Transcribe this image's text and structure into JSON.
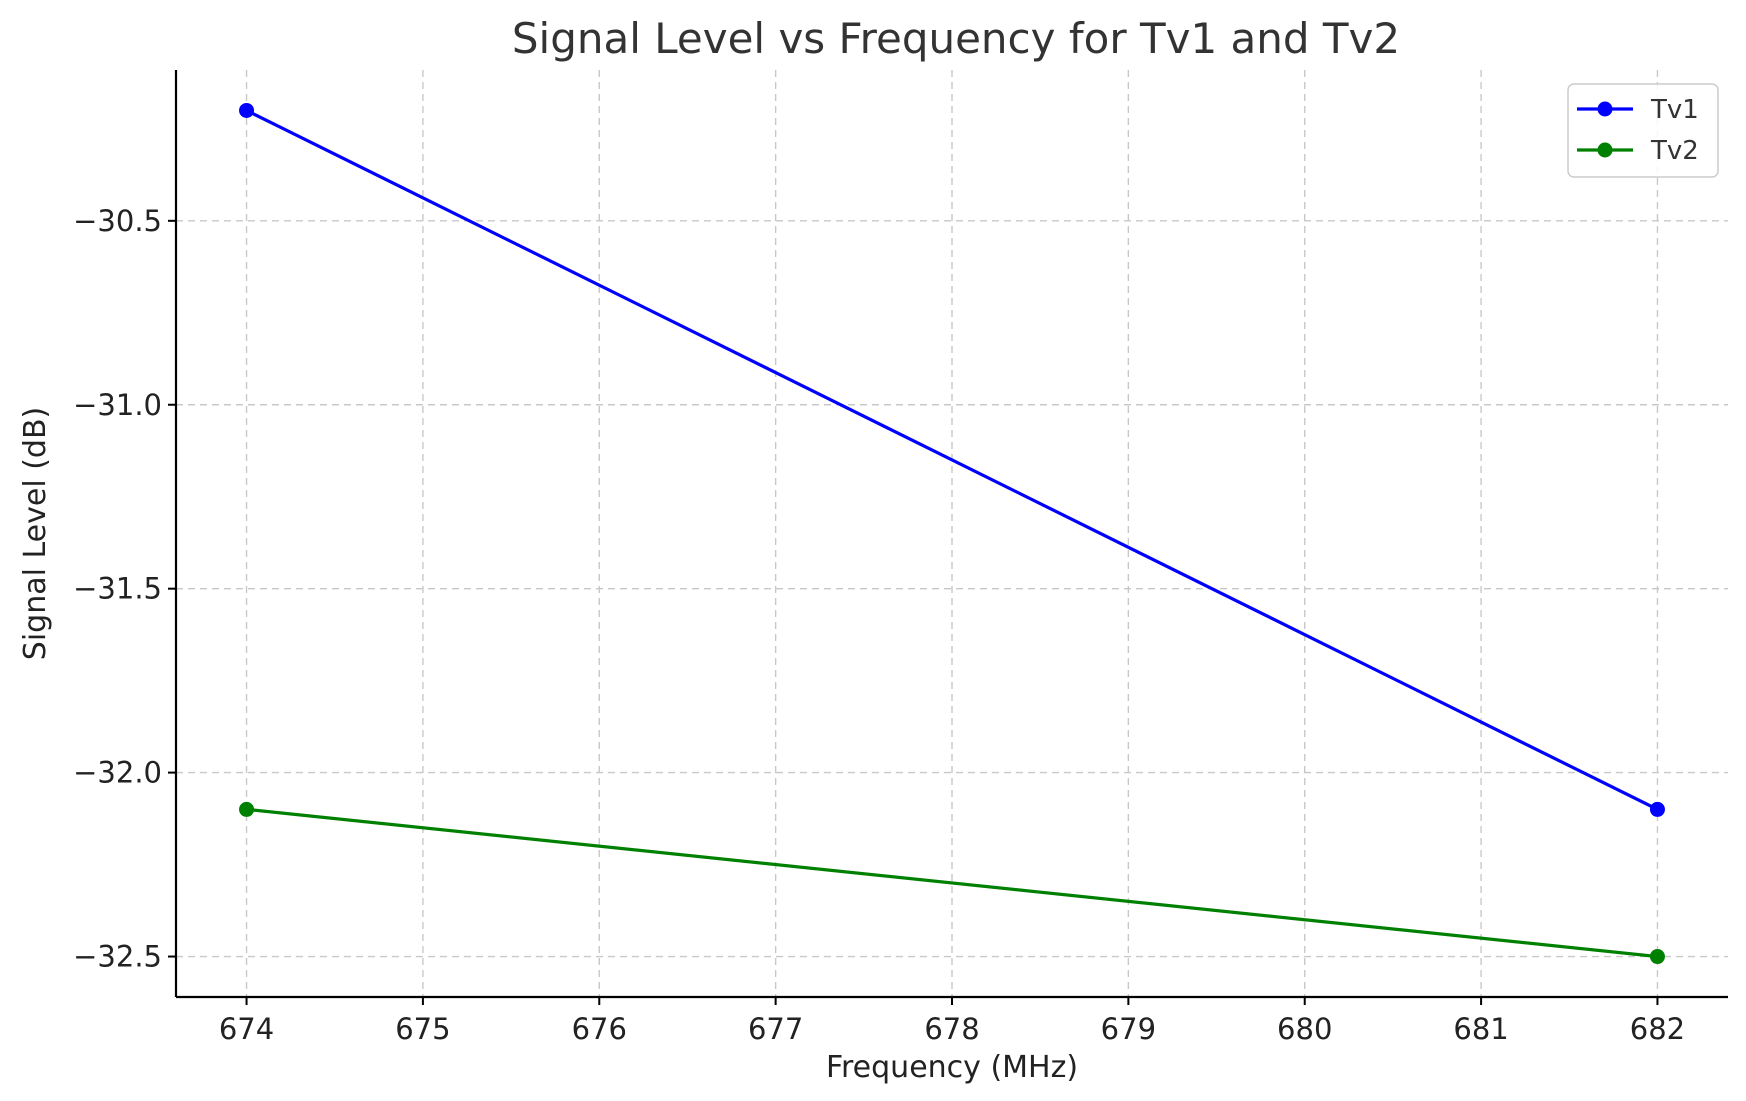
{
  "chart_data": {
    "type": "line",
    "title": "Signal Level vs Frequency for Tv1 and Tv2",
    "xlabel": "Frequency (MHz)",
    "ylabel": "Signal Level (dB)",
    "x": [
      674,
      682
    ],
    "series": [
      {
        "name": "Tv1",
        "color": "#0000ff",
        "values": [
          -30.2,
          -32.1
        ]
      },
      {
        "name": "Tv2",
        "color": "#008000",
        "values": [
          -32.1,
          -32.5
        ]
      }
    ],
    "xlim": [
      673.6,
      682.4
    ],
    "ylim": [
      -32.61,
      -30.09
    ],
    "xticks": [
      674,
      675,
      676,
      677,
      678,
      679,
      680,
      681,
      682
    ],
    "xtick_labels": [
      "674",
      "675",
      "676",
      "677",
      "678",
      "679",
      "680",
      "681",
      "682"
    ],
    "yticks": [
      -30.5,
      -31.0,
      -31.5,
      -32.0,
      -32.5
    ],
    "ytick_labels": [
      "−30.5",
      "−31.0",
      "−31.5",
      "−32.0",
      "−32.5"
    ],
    "grid": true,
    "legend_position": "top-right"
  }
}
